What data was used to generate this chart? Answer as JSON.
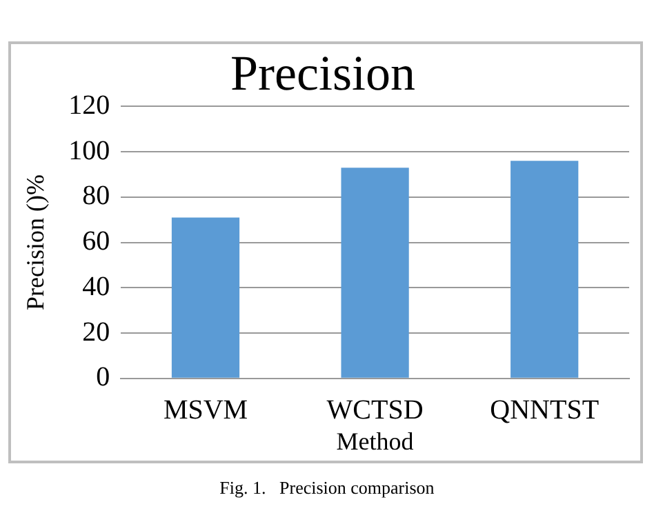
{
  "chart_data": {
    "type": "bar",
    "title": "Precision",
    "xlabel": "Method",
    "ylabel": "Precision ()%",
    "categories": [
      "MSVM",
      "WCTSD",
      "QNNTST"
    ],
    "values": [
      71,
      93,
      96
    ],
    "color": "#5b9bd5",
    "ylim": [
      0,
      120
    ],
    "yticks": [
      0,
      20,
      40,
      60,
      80,
      100,
      120
    ],
    "grid": "y",
    "annotations": [
      "Fig. 1.   Precision comparison"
    ]
  }
}
